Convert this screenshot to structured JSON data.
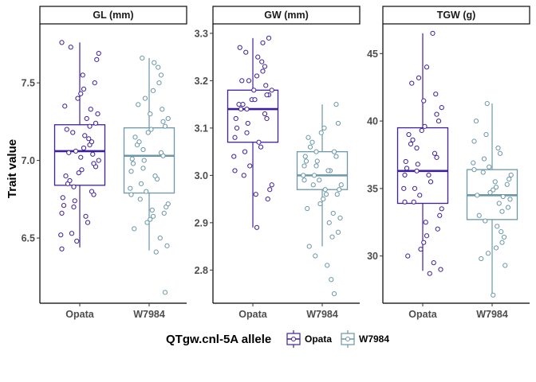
{
  "chart_data": {
    "type": "boxplot",
    "ylabel": "Trait value",
    "categories": [
      "Opata",
      "W7984"
    ],
    "legend": {
      "title": "QTgw.cnl-5A allele",
      "position": "bottom",
      "entries": [
        "Opata",
        "W7984"
      ]
    },
    "colors": {
      "Opata": "#3f1f9e",
      "W7984": "#6b97a8"
    },
    "grid": false,
    "panels": [
      {
        "title": "GL (mm)",
        "ylim": [
          6.08,
          7.88
        ],
        "yticks": [
          6.5,
          7.0,
          7.5
        ],
        "ytick_labels": [
          "6.5",
          "7.0",
          "7.5"
        ],
        "boxes": [
          {
            "group": "Opata",
            "min": 6.44,
            "q1": 6.84,
            "median": 7.06,
            "q3": 7.23,
            "max": 7.76
          },
          {
            "group": "W7984",
            "min": 6.42,
            "q1": 6.79,
            "median": 7.03,
            "q3": 7.21,
            "max": 7.66
          }
        ],
        "points": [
          [
            6.43,
            6.48,
            6.52,
            6.53,
            6.6,
            6.64,
            6.66,
            6.7,
            6.71,
            6.74,
            6.76,
            6.78,
            6.8,
            6.83,
            6.85,
            6.87,
            6.9,
            6.92,
            6.94,
            6.96,
            6.98,
            7.0,
            7.02,
            7.04,
            7.05,
            7.06,
            7.08,
            7.1,
            7.12,
            7.14,
            7.16,
            7.18,
            7.2,
            7.22,
            7.24,
            7.27,
            7.3,
            7.33,
            7.35,
            7.4,
            7.43,
            7.46,
            7.5,
            7.55,
            7.65,
            7.69,
            7.73,
            7.76
          ],
          [
            6.15,
            6.41,
            6.45,
            6.5,
            6.56,
            6.6,
            6.62,
            6.64,
            6.66,
            6.68,
            6.7,
            6.72,
            6.75,
            6.78,
            6.8,
            6.82,
            6.85,
            6.88,
            6.9,
            6.93,
            6.95,
            6.98,
            7.0,
            7.01,
            7.03,
            7.05,
            7.07,
            7.1,
            7.12,
            7.15,
            7.18,
            7.2,
            7.22,
            7.25,
            7.27,
            7.3,
            7.33,
            7.36,
            7.4,
            7.45,
            7.5,
            7.55,
            7.6,
            7.63,
            7.66
          ]
        ]
      },
      {
        "title": "GW (mm)",
        "ylim": [
          2.73,
          3.32
        ],
        "yticks": [
          2.8,
          2.9,
          3.0,
          3.1,
          3.2,
          3.3
        ],
        "ytick_labels": [
          "2.8",
          "2.9",
          "3.0",
          "3.1",
          "3.2",
          "3.3"
        ],
        "boxes": [
          {
            "group": "Opata",
            "min": 2.89,
            "q1": 3.07,
            "median": 3.14,
            "q3": 3.18,
            "max": 3.29
          },
          {
            "group": "W7984",
            "min": 2.85,
            "q1": 2.97,
            "median": 3.0,
            "q3": 3.05,
            "max": 3.15
          }
        ],
        "points": [
          [
            2.89,
            2.95,
            2.96,
            2.97,
            2.98,
            3.0,
            3.01,
            3.02,
            3.04,
            3.05,
            3.06,
            3.07,
            3.08,
            3.09,
            3.1,
            3.11,
            3.12,
            3.12,
            3.13,
            3.14,
            3.14,
            3.15,
            3.15,
            3.16,
            3.16,
            3.17,
            3.17,
            3.18,
            3.18,
            3.19,
            3.2,
            3.2,
            3.21,
            3.22,
            3.23,
            3.24,
            3.25,
            3.26,
            3.27,
            3.28,
            3.29
          ],
          [
            2.75,
            2.78,
            2.81,
            2.83,
            2.85,
            2.87,
            2.88,
            2.9,
            2.91,
            2.92,
            2.93,
            2.94,
            2.95,
            2.96,
            2.96,
            2.97,
            2.97,
            2.98,
            2.98,
            2.99,
            2.99,
            3.0,
            3.0,
            3.01,
            3.01,
            3.02,
            3.02,
            3.03,
            3.03,
            3.04,
            3.04,
            3.05,
            3.05,
            3.06,
            3.07,
            3.08,
            3.09,
            3.1,
            3.11,
            3.15
          ]
        ]
      },
      {
        "title": "TGW (g)",
        "ylim": [
          26.5,
          47.2
        ],
        "yticks": [
          30,
          35,
          40,
          45
        ],
        "ytick_labels": [
          "30",
          "35",
          "40",
          "45"
        ],
        "boxes": [
          {
            "group": "Opata",
            "min": 28.9,
            "q1": 33.9,
            "median": 36.3,
            "q3": 39.5,
            "max": 46.5
          },
          {
            "group": "W7984",
            "min": 27.1,
            "q1": 32.7,
            "median": 34.5,
            "q3": 36.4,
            "max": 41.3
          }
        ],
        "points": [
          [
            28.7,
            29.0,
            29.5,
            30.0,
            30.5,
            31.0,
            31.5,
            32.0,
            32.5,
            33.0,
            33.5,
            34.0,
            34.0,
            34.5,
            35.0,
            35.0,
            35.5,
            36.0,
            36.0,
            36.3,
            36.5,
            36.8,
            37.0,
            37.3,
            37.6,
            38.0,
            38.3,
            38.6,
            39.0,
            39.3,
            39.6,
            40.0,
            40.5,
            41.0,
            41.5,
            42.0,
            42.8,
            43.2,
            44.0,
            46.5
          ],
          [
            27.1,
            29.3,
            29.8,
            30.2,
            30.6,
            31.0,
            31.4,
            31.8,
            32.2,
            32.6,
            33.0,
            33.3,
            33.6,
            33.9,
            34.2,
            34.4,
            34.5,
            34.7,
            34.9,
            35.1,
            35.3,
            35.5,
            35.7,
            36.0,
            36.2,
            36.4,
            36.6,
            36.9,
            37.2,
            37.6,
            38.0,
            38.5,
            39.0,
            40.0,
            41.3
          ]
        ]
      }
    ]
  }
}
